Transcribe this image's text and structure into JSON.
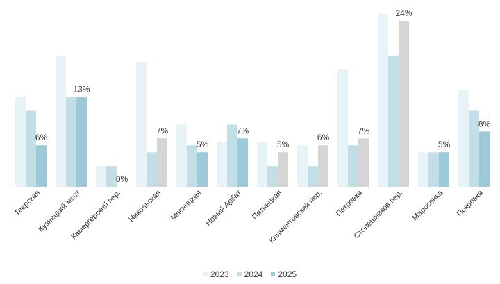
{
  "chart_data": {
    "type": "bar",
    "categories": [
      "Тверская",
      "Кузнецкий мост",
      "Камергерский пер.",
      "Никольская",
      "Мясницкая",
      "Новый Арбат",
      "Пятницкая",
      "Климентовский пер.",
      "Петровка",
      "Столешников пер.",
      "Маросейка",
      "Покровка"
    ],
    "series": [
      {
        "name": "2023",
        "color": "#e8f3f7",
        "values": [
          13,
          19,
          3,
          18,
          9,
          6.5,
          6.5,
          6,
          17,
          25,
          5,
          14
        ]
      },
      {
        "name": "2024",
        "color": "#c2dfe8",
        "values": [
          11,
          13,
          3,
          5,
          6,
          9,
          3,
          3,
          6,
          19,
          5,
          11
        ]
      },
      {
        "name": "2025",
        "color": "#9ccad8",
        "values": [
          6,
          13,
          0,
          7,
          5,
          7,
          5,
          6,
          7,
          24,
          5,
          8
        ]
      }
    ],
    "highlight_color": "#d5d5d5",
    "data_labels": [
      "6%",
      "13%",
      "0%",
      "7%",
      "5%",
      "7%",
      "5%",
      "6%",
      "7%",
      "24%",
      "5%",
      "8%"
    ],
    "ylim": [
      0,
      25
    ],
    "grid": false,
    "legend_position": "bottom-center"
  }
}
